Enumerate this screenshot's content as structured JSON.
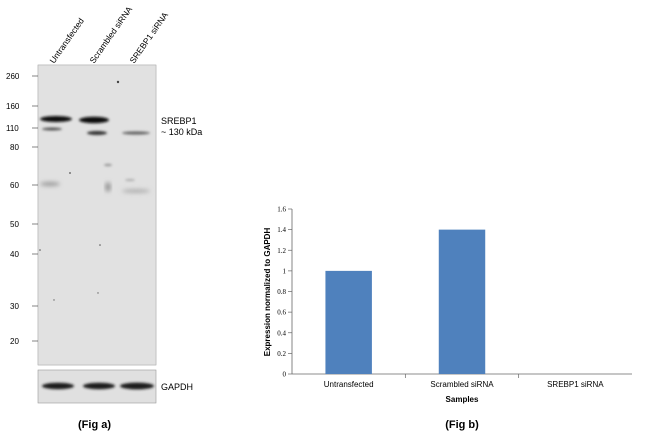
{
  "panel_a": {
    "lanes": [
      "Untransfected",
      "Scrambled siRNA",
      "SREBP1 siRNA"
    ],
    "markers": [
      "260",
      "160",
      "110",
      "80",
      "60",
      "50",
      "40",
      "30",
      "20"
    ],
    "band_label_line1": "SREBP1",
    "band_label_line2": "~ 130 kDa",
    "loading_control": "GAPDH",
    "caption": "(Fig a)"
  },
  "panel_b": {
    "caption": "(Fig b)"
  },
  "chart_data": {
    "type": "bar",
    "categories": [
      "Untransfected",
      "Scrambled siRNA",
      "SREBP1 siRNA"
    ],
    "values": [
      1.0,
      1.4,
      0.0
    ],
    "title": "",
    "xlabel": "Samples",
    "ylabel": "Expression normalized to GAPDH",
    "ylim": [
      0,
      1.6
    ],
    "yticks": [
      "0",
      "0.2",
      "0.4",
      "0.6",
      "0.8",
      "1",
      "1.2",
      "1.4",
      "1.6"
    ],
    "bar_color": "#4f81bd",
    "grid": false
  }
}
